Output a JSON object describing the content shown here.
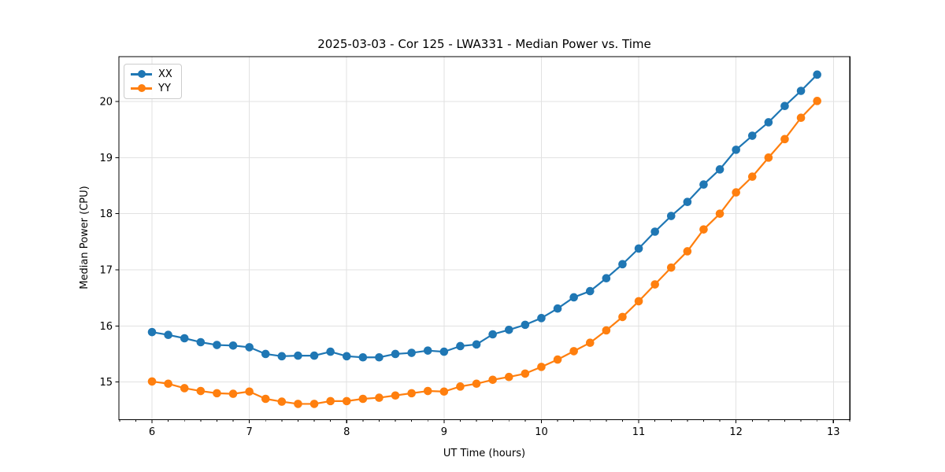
{
  "figure": {
    "title": "2025-03-03 - Cor 125 - LWA331 - Median Power vs. Time",
    "xlabel": "UT Time (hours)",
    "ylabel": "Median Power (CPU)"
  },
  "legend": {
    "items": [
      {
        "label": "XX",
        "color": "#1f77b4"
      },
      {
        "label": "YY",
        "color": "#ff7f0e"
      }
    ]
  },
  "colors": {
    "series_xx": "#1f77b4",
    "series_yy": "#ff7f0e",
    "grid": "#e2e2e2",
    "spine": "#000000",
    "text": "#000000"
  },
  "chart_data": {
    "type": "line",
    "title": "2025-03-03 - Cor 125 - LWA331 - Median Power vs. Time",
    "xlabel": "UT Time (hours)",
    "ylabel": "Median Power (CPU)",
    "xlim": [
      5.66,
      13.17
    ],
    "ylim": [
      14.33,
      20.8
    ],
    "x_ticks": [
      6,
      7,
      8,
      9,
      10,
      11,
      12,
      13
    ],
    "x_tick_labels": [
      "6",
      "7",
      "8",
      "9",
      "10",
      "11",
      "12",
      "13"
    ],
    "y_ticks": [
      15,
      16,
      17,
      18,
      19,
      20
    ],
    "y_tick_labels": [
      "15",
      "16",
      "17",
      "18",
      "19",
      "20"
    ],
    "x_minor_tick_step": 0.16667,
    "grid": true,
    "legend_position": "upper left",
    "marker": "o",
    "x": [
      6.0,
      6.1667,
      6.3333,
      6.5,
      6.6667,
      6.8333,
      7.0,
      7.1667,
      7.3333,
      7.5,
      7.6667,
      7.8333,
      8.0,
      8.1667,
      8.3333,
      8.5,
      8.6667,
      8.8333,
      9.0,
      9.1667,
      9.3333,
      9.5,
      9.6667,
      9.8333,
      10.0,
      10.1667,
      10.3333,
      10.5,
      10.6667,
      10.8333,
      11.0,
      11.1667,
      11.3333,
      11.5,
      11.6667,
      11.8333,
      12.0,
      12.1667,
      12.3333,
      12.5,
      12.6667,
      12.8333
    ],
    "series": [
      {
        "name": "XX",
        "color": "#1f77b4",
        "values": [
          15.89,
          15.84,
          15.78,
          15.71,
          15.66,
          15.65,
          15.62,
          15.5,
          15.46,
          15.47,
          15.47,
          15.54,
          15.46,
          15.44,
          15.44,
          15.5,
          15.52,
          15.56,
          15.54,
          15.64,
          15.67,
          15.85,
          15.93,
          16.02,
          16.14,
          16.31,
          16.51,
          16.62,
          16.85,
          17.1,
          17.38,
          17.68,
          17.96,
          18.21,
          18.52,
          18.79,
          19.14,
          19.39,
          19.63,
          19.92,
          20.19,
          20.48
        ]
      },
      {
        "name": "YY",
        "color": "#ff7f0e",
        "values": [
          15.01,
          14.97,
          14.89,
          14.84,
          14.8,
          14.79,
          14.83,
          14.7,
          14.65,
          14.61,
          14.61,
          14.66,
          14.66,
          14.7,
          14.72,
          14.76,
          14.8,
          14.84,
          14.83,
          14.92,
          14.97,
          15.04,
          15.09,
          15.15,
          15.27,
          15.4,
          15.55,
          15.7,
          15.92,
          16.16,
          16.44,
          16.74,
          17.04,
          17.33,
          17.72,
          18.0,
          18.38,
          18.66,
          19.0,
          19.33,
          19.71,
          20.01
        ]
      }
    ]
  }
}
